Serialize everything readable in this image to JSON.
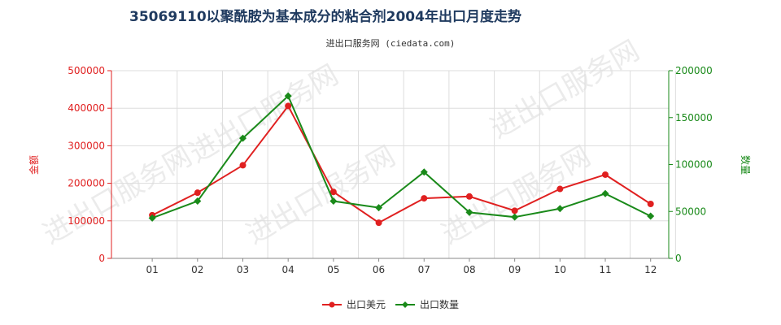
{
  "chart_data": {
    "type": "line",
    "title": "35069110以聚酰胺为基本成分的粘合剂2004年出口月度走势",
    "subtitle": "进出口服务网 (ciedata.com)",
    "categories": [
      "01",
      "02",
      "03",
      "04",
      "05",
      "06",
      "07",
      "08",
      "09",
      "10",
      "11",
      "12"
    ],
    "y_left": {
      "label": "金额",
      "ticks": [
        "0",
        "100000",
        "200000",
        "300000",
        "400000",
        "500000"
      ],
      "ylim": [
        0,
        500000
      ]
    },
    "y_right": {
      "label": "数量",
      "ticks": [
        "0",
        "50000",
        "100000",
        "150000",
        "200000"
      ],
      "ylim": [
        0,
        200000
      ]
    },
    "series": [
      {
        "name": "出口美元",
        "axis": "left",
        "color": "#e02020",
        "values": [
          115000,
          175000,
          248000,
          406000,
          177000,
          95000,
          160000,
          165000,
          127000,
          185000,
          223000,
          145000
        ]
      },
      {
        "name": "出口数量",
        "axis": "right",
        "color": "#1a8a1a",
        "values": [
          43000,
          61000,
          128000,
          173000,
          61000,
          54000,
          92000,
          49000,
          44000,
          53000,
          69000,
          45000
        ]
      }
    ],
    "grid": true,
    "legend": "bottom-center",
    "watermark": "进出口服务网"
  }
}
